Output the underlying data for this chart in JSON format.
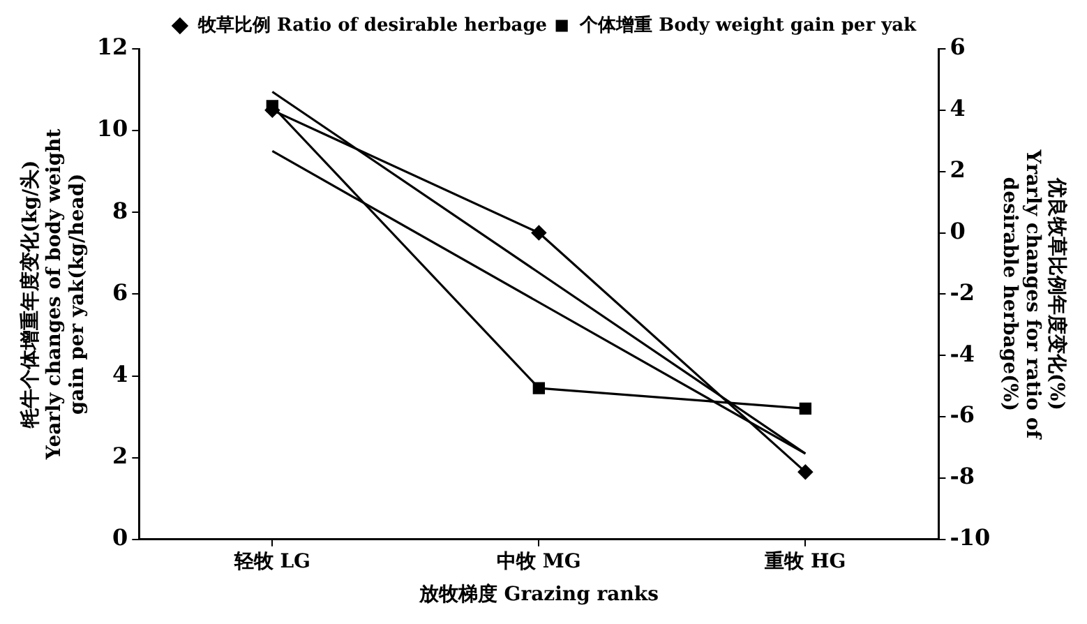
{
  "chart_data": {
    "type": "line",
    "categories": [
      "轻牧 LG",
      "中牧 MG",
      "重牧 HG"
    ],
    "xlabel": "放牧梯度 Grazing ranks",
    "ylabel": "牦牛个体增重年度变化(kg/头)\nYearly changes of body weight\ngain per yak(kg/head)",
    "y2label": "优良牧草比例年度变化(%)\nYrarly changes for ratio of\ndesirable herbage(%)",
    "series": [
      {
        "name": "个体增重 Body weight gain per yak",
        "color": "#000000",
        "values": [
          10.6,
          3.7,
          3.2
        ],
        "marker": "square"
      },
      {
        "name": "牧草比例 Ratio of desirable herbage",
        "color": "#000000",
        "values": [
          4.0,
          0.0,
          -7.8
        ],
        "axis": "y2",
        "marker": "diamond"
      },
      {
        "type": "line",
        "color": "#000000",
        "x": [
          "轻牧 LG",
          "重牧 HG"
        ],
        "values": [
          9.5,
          2.1
        ],
        "marker": "none"
      },
      {
        "type": "line",
        "color": "#000000",
        "x": [
          "轻牧 LG",
          "重牧 HG"
        ],
        "values": [
          4.6,
          -7.2
        ],
        "axis": "y2",
        "marker": "none"
      }
    ],
    "ylim": [
      0,
      12
    ],
    "yticks": [
      0,
      2,
      4,
      6,
      8,
      10,
      12
    ],
    "y2lim": [
      -10,
      6
    ],
    "y2ticks": [
      -10,
      -8,
      -6,
      -4,
      -2,
      0,
      2,
      4,
      6
    ],
    "grid": false,
    "legend": "top"
  }
}
